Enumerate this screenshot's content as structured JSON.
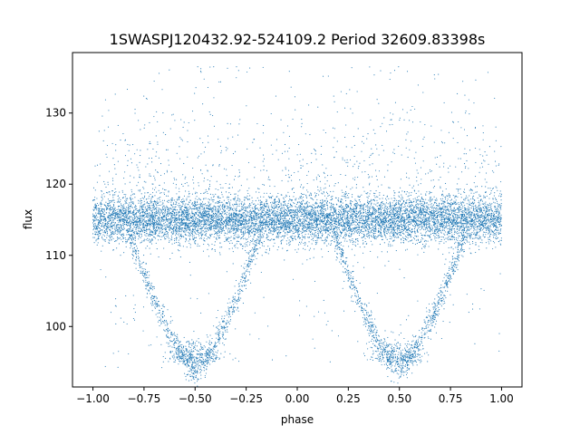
{
  "chart_data": {
    "type": "scatter",
    "title": "1SWASPJ120432.92-524109.2 Period 32609.83398s",
    "xlabel": "phase",
    "ylabel": "flux",
    "xlim": [
      -1.1,
      1.1
    ],
    "ylim": [
      91.5,
      138.5
    ],
    "xticks": [
      -1.0,
      -0.75,
      -0.5,
      -0.25,
      0.0,
      0.25,
      0.5,
      0.75,
      1.0
    ],
    "xtick_labels": [
      "−1.00",
      "−0.75",
      "−0.50",
      "−0.25",
      "0.00",
      "0.25",
      "0.50",
      "0.75",
      "1.00"
    ],
    "yticks": [
      100,
      110,
      120,
      130
    ],
    "ytick_labels": [
      "100",
      "110",
      "120",
      "130"
    ],
    "grid": false,
    "marker_color": "#1f77b4",
    "series": [
      {
        "phase_range": [
          -1.0,
          1.0
        ],
        "baseline_flux": 115,
        "baseline_spread": 1.6,
        "eclipse_centers": [
          -0.5,
          0.5
        ],
        "eclipse_min_flux": 94,
        "outlier_flux_range": [
          94,
          136.5
        ]
      }
    ]
  }
}
